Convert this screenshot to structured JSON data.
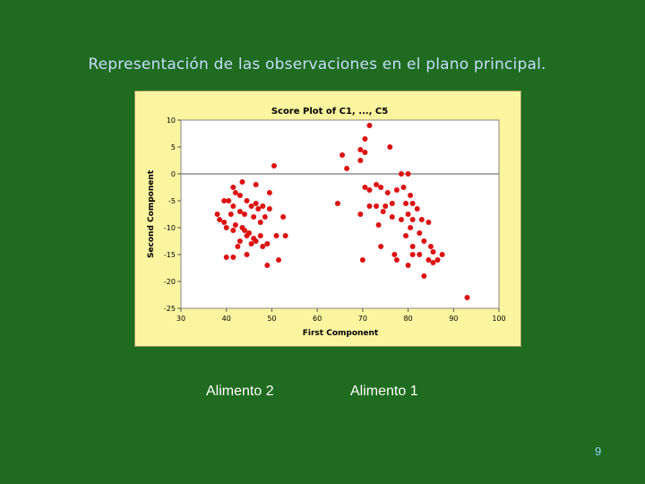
{
  "slide": {
    "title": "Representación de las observaciones en el plano principal.",
    "label_left": "Alimento 2",
    "label_right": "Alimento 1",
    "page_number": "9"
  },
  "colors": {
    "background": "#1f6b1f",
    "plot_background": "#fbf5a0",
    "point": "#dd1111",
    "title": "#c8dcff"
  },
  "chart_data": {
    "type": "scatter",
    "title": "Score Plot of C1, ..., C5",
    "xlabel": "First Component",
    "ylabel": "Second Component",
    "xlim": [
      30,
      100
    ],
    "ylim": [
      -25,
      10
    ],
    "xticks": [
      30,
      40,
      50,
      60,
      70,
      80,
      90,
      100
    ],
    "yticks": [
      10,
      5,
      0,
      -5,
      -10,
      -15,
      -20,
      -25
    ],
    "reference_line_y": 0,
    "grid": false,
    "legend": "none",
    "points": [
      [
        50.5,
        1.5
      ],
      [
        49.5,
        -3.5
      ],
      [
        46.5,
        -2
      ],
      [
        43.5,
        -1.5
      ],
      [
        41.5,
        -2.5
      ],
      [
        42,
        -3.5
      ],
      [
        43,
        -4
      ],
      [
        40.5,
        -5
      ],
      [
        39.5,
        -5
      ],
      [
        44.5,
        -5
      ],
      [
        41.5,
        -6
      ],
      [
        45.5,
        -6
      ],
      [
        46.5,
        -5.5
      ],
      [
        48,
        -6
      ],
      [
        47,
        -6.5
      ],
      [
        49.5,
        -6.5
      ],
      [
        43,
        -7
      ],
      [
        44,
        -7.5
      ],
      [
        41,
        -7.5
      ],
      [
        38,
        -7.5
      ],
      [
        38.5,
        -8.5
      ],
      [
        46,
        -8
      ],
      [
        48.5,
        -8
      ],
      [
        52.5,
        -8
      ],
      [
        39.5,
        -9
      ],
      [
        42,
        -9.5
      ],
      [
        47.5,
        -9
      ],
      [
        44,
        -10.5
      ],
      [
        40,
        -10
      ],
      [
        45,
        -11
      ],
      [
        41.5,
        -10.5
      ],
      [
        43.5,
        -10
      ],
      [
        44.5,
        -11.5
      ],
      [
        46,
        -12
      ],
      [
        47.5,
        -11.5
      ],
      [
        46.5,
        -12.5
      ],
      [
        51,
        -11.5
      ],
      [
        53,
        -11.5
      ],
      [
        43,
        -12.5
      ],
      [
        42.5,
        -13.5
      ],
      [
        45.5,
        -13
      ],
      [
        48,
        -13.5
      ],
      [
        49,
        -13
      ],
      [
        40,
        -15.5
      ],
      [
        41.5,
        -15.5
      ],
      [
        44.5,
        -15
      ],
      [
        51.5,
        -16
      ],
      [
        49,
        -17
      ],
      [
        71.5,
        9
      ],
      [
        70.5,
        6.5
      ],
      [
        69.5,
        4.5
      ],
      [
        70.5,
        4
      ],
      [
        76,
        5
      ],
      [
        65.5,
        3.5
      ],
      [
        69.5,
        2.5
      ],
      [
        66.5,
        1
      ],
      [
        78.5,
        0
      ],
      [
        80,
        0
      ],
      [
        70.5,
        -2.5
      ],
      [
        71.5,
        -3
      ],
      [
        73,
        -2
      ],
      [
        74,
        -2.5
      ],
      [
        75.5,
        -3.5
      ],
      [
        77.5,
        -3
      ],
      [
        79,
        -2.5
      ],
      [
        80.5,
        -4
      ],
      [
        64.5,
        -5.5
      ],
      [
        71.5,
        -6
      ],
      [
        73,
        -6
      ],
      [
        75,
        -6
      ],
      [
        76.5,
        -5.5
      ],
      [
        79.5,
        -5.5
      ],
      [
        81,
        -5.5
      ],
      [
        82,
        -6.5
      ],
      [
        69.5,
        -7.5
      ],
      [
        74.5,
        -7
      ],
      [
        76.5,
        -8
      ],
      [
        80,
        -7.5
      ],
      [
        78.5,
        -8.5
      ],
      [
        81,
        -8.5
      ],
      [
        83,
        -8.5
      ],
      [
        84.5,
        -9
      ],
      [
        73.5,
        -9.5
      ],
      [
        80.5,
        -10
      ],
      [
        79.5,
        -11.5
      ],
      [
        82.5,
        -11
      ],
      [
        83.5,
        -12.5
      ],
      [
        74,
        -13.5
      ],
      [
        81,
        -13.5
      ],
      [
        85,
        -13.5
      ],
      [
        85.5,
        -14.5
      ],
      [
        77,
        -15
      ],
      [
        77.5,
        -16
      ],
      [
        81,
        -15
      ],
      [
        82.5,
        -15
      ],
      [
        87.5,
        -15
      ],
      [
        70,
        -16
      ],
      [
        80,
        -17
      ],
      [
        84.5,
        -16
      ],
      [
        86.5,
        -16
      ],
      [
        85.5,
        -16.5
      ],
      [
        83.5,
        -19
      ],
      [
        93,
        -23
      ]
    ]
  }
}
